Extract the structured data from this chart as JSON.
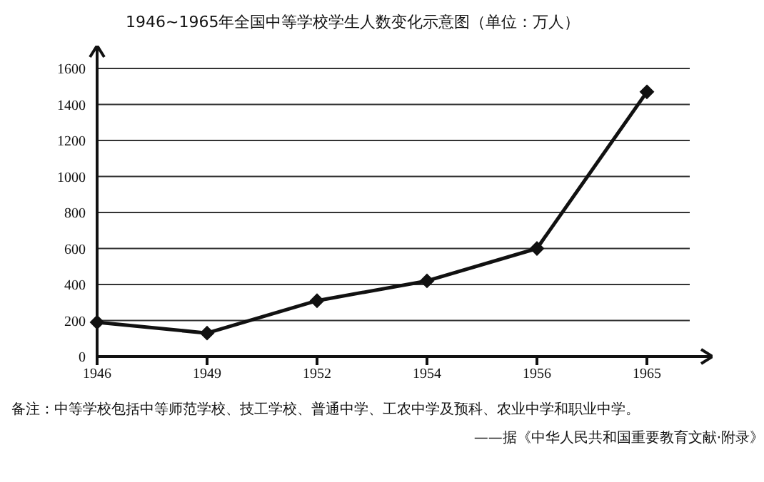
{
  "chart_data": {
    "type": "line",
    "title": "1946~1965年全国中等学校学生人数变化示意图（单位：万人）",
    "categories": [
      "1946",
      "1949",
      "1952",
      "1954",
      "1956",
      "1965"
    ],
    "series": [
      {
        "color": "#111111",
        "values": [
          190,
          130,
          310,
          420,
          600,
          1470
        ]
      }
    ],
    "ylim": [
      0,
      1600
    ],
    "yticks": [
      0,
      200,
      400,
      600,
      800,
      1000,
      1200,
      1400,
      1600
    ],
    "grid": "y",
    "marker": "diamond",
    "line_style": "solid",
    "annotations": [
      "备注：中等学校包括中等师范学校、技工学校、普通中学、工农中学及预科、农业中学和职业中学。",
      "——据《中华人民共和国重要教育文献·附录》"
    ]
  }
}
